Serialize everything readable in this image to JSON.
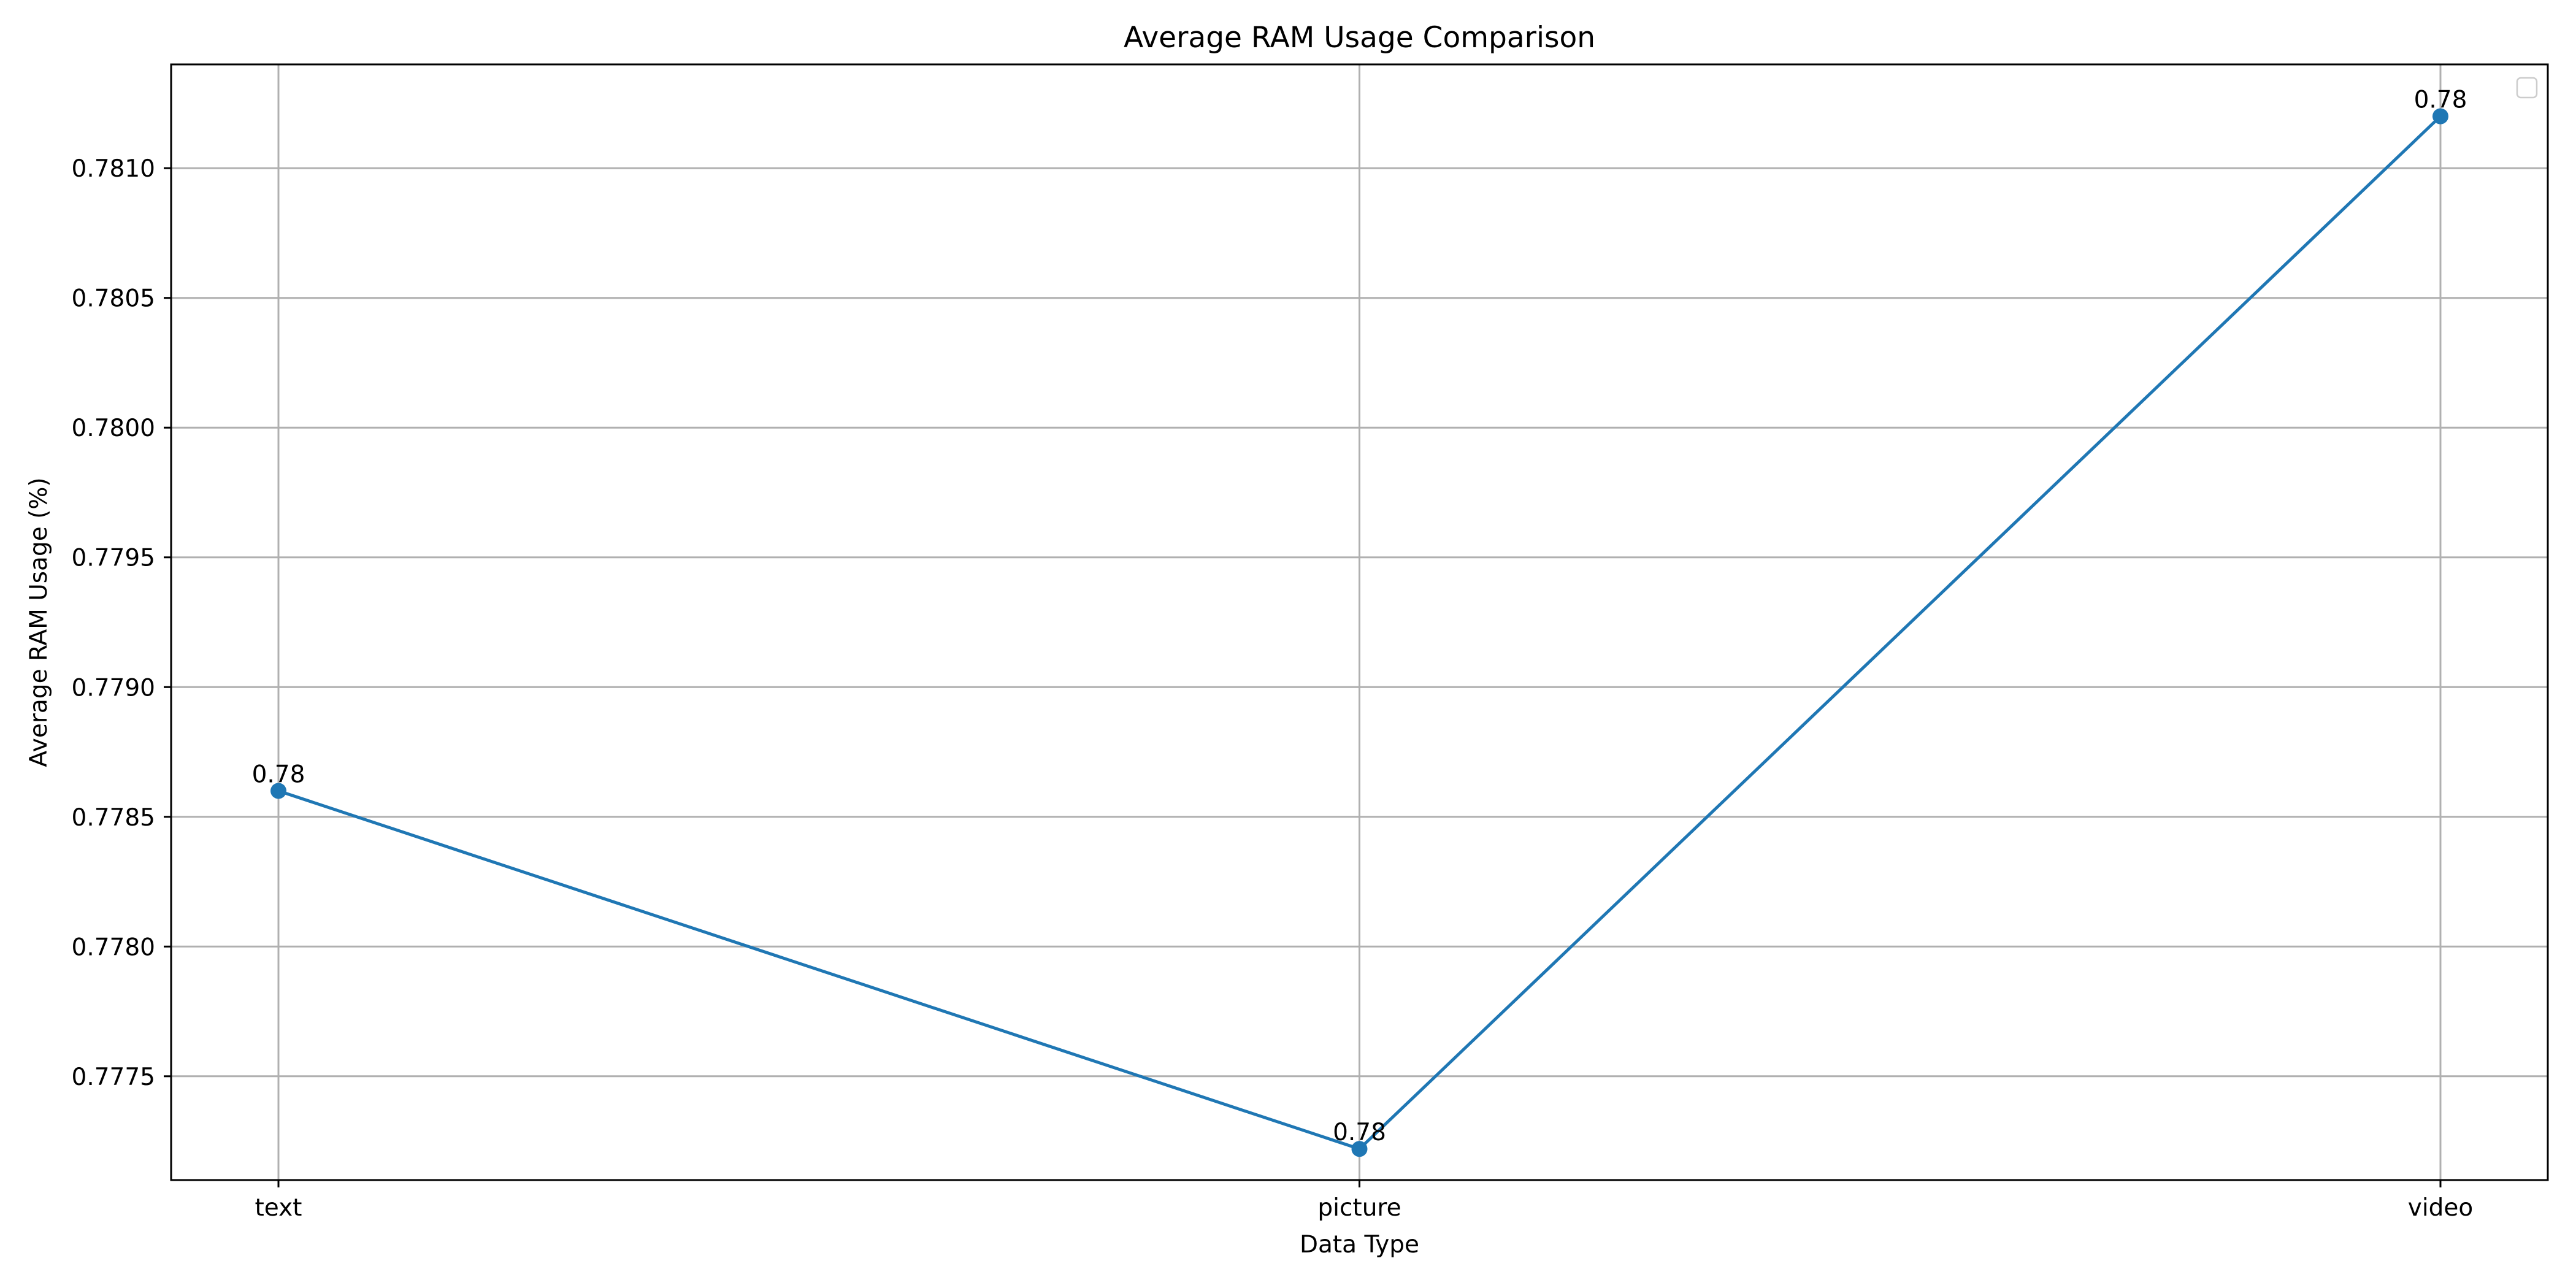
{
  "chart_data": {
    "type": "line",
    "title": "Average RAM Usage Comparison",
    "xlabel": "Data Type",
    "ylabel": "Average RAM Usage (%)",
    "categories": [
      "text",
      "picture",
      "video"
    ],
    "series": [
      {
        "values": [
          0.7786,
          0.77722,
          0.7812
        ],
        "data_labels": [
          "0.78",
          "0.78",
          "0.78"
        ],
        "color": "#1f77b4",
        "marker": "circle"
      }
    ],
    "ylim": [
      0.7771,
      0.7814
    ],
    "yticks": [
      0.7775,
      0.778,
      0.7785,
      0.779,
      0.7795,
      0.78,
      0.7805,
      0.781
    ],
    "ytick_labels": [
      "0.7775",
      "0.7780",
      "0.7785",
      "0.7790",
      "0.7795",
      "0.7800",
      "0.7805",
      "0.7810"
    ],
    "grid": true,
    "legend": {
      "placement": "top-right",
      "entries": []
    },
    "colors": {
      "grid": "#b0b0b0",
      "axes": "#000000",
      "line": "#1f77b4"
    }
  }
}
